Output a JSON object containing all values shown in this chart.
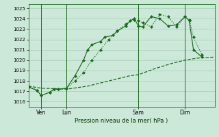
{
  "bg_color": "#cce8d8",
  "grid_color": "#aaccbb",
  "line_color": "#1a6b1a",
  "title": "Pression niveau de la mer( hPa )",
  "ylim": [
    1015.5,
    1025.4
  ],
  "yticks": [
    1016,
    1017,
    1018,
    1019,
    1020,
    1021,
    1022,
    1023,
    1024,
    1025
  ],
  "xlim": [
    0,
    44
  ],
  "xtick_positions": [
    3,
    9,
    26,
    37
  ],
  "xtick_labels": [
    "Ven",
    "Lun",
    "Sam",
    "Dim"
  ],
  "vline_positions": [
    3,
    9,
    26,
    37
  ],
  "line_diag_x": [
    0,
    3,
    9,
    14,
    19,
    24,
    26,
    30,
    34,
    37,
    40,
    44
  ],
  "line_diag_y": [
    1017.5,
    1017.3,
    1017.2,
    1017.5,
    1018.0,
    1018.5,
    1018.6,
    1019.2,
    1019.7,
    1020.0,
    1020.2,
    1020.3
  ],
  "line_dot_x": [
    0,
    2,
    3,
    5,
    6,
    7,
    9,
    11,
    13,
    15,
    17,
    19,
    21,
    23,
    25,
    26,
    27,
    29,
    31,
    33,
    35,
    37,
    38,
    39,
    41
  ],
  "line_dot_y": [
    1017.5,
    1017.1,
    1016.6,
    1016.9,
    1017.2,
    1017.2,
    1017.3,
    1018.0,
    1018.8,
    1020.0,
    1021.0,
    1022.0,
    1022.8,
    1023.5,
    1023.9,
    1023.8,
    1023.6,
    1023.2,
    1024.4,
    1024.2,
    1023.2,
    1024.2,
    1023.9,
    1022.2,
    1020.5
  ],
  "line_solid_x": [
    0,
    2,
    3,
    5,
    6,
    7,
    9,
    11,
    13,
    14,
    15,
    17,
    18,
    20,
    21,
    23,
    24,
    25,
    26,
    27,
    29,
    31,
    33,
    35,
    37,
    38,
    39,
    41
  ],
  "line_solid_y": [
    1017.4,
    1017.1,
    1016.6,
    1016.9,
    1017.2,
    1017.2,
    1017.3,
    1018.5,
    1020.0,
    1021.0,
    1021.5,
    1021.8,
    1022.2,
    1022.4,
    1022.8,
    1023.3,
    1023.8,
    1024.0,
    1023.3,
    1023.2,
    1024.2,
    1024.0,
    1023.3,
    1023.4,
    1024.2,
    1023.8,
    1021.0,
    1020.3
  ]
}
